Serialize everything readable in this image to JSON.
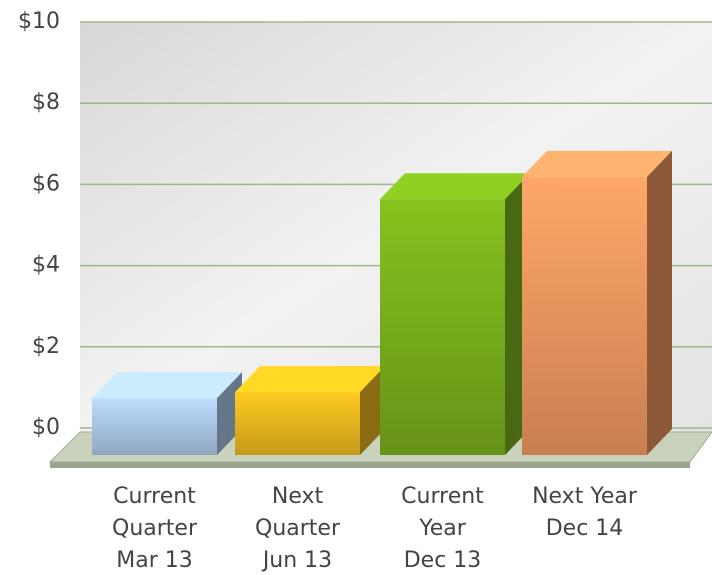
{
  "chart_data": {
    "type": "bar3d",
    "categories": [
      [
        "Current",
        "Quarter",
        "Mar 13"
      ],
      [
        "Next",
        "Quarter",
        "Jun 13"
      ],
      [
        "Current",
        "Year",
        "Dec 13"
      ],
      [
        "Next Year",
        "Dec 14"
      ]
    ],
    "values": [
      1.4,
      1.55,
      6.3,
      6.85
    ],
    "colors": [
      "#a9c4e4",
      "#e6b51e",
      "#78ad1c",
      "#ec955e"
    ],
    "ylim": [
      0,
      10
    ],
    "yticks": [
      {
        "value": 0,
        "label": "$0"
      },
      {
        "value": 2,
        "label": "$2"
      },
      {
        "value": 4,
        "label": "$4"
      },
      {
        "value": 6,
        "label": "$6"
      },
      {
        "value": 8,
        "label": "$8"
      },
      {
        "value": 10,
        "label": "$10"
      }
    ],
    "grid": true
  }
}
